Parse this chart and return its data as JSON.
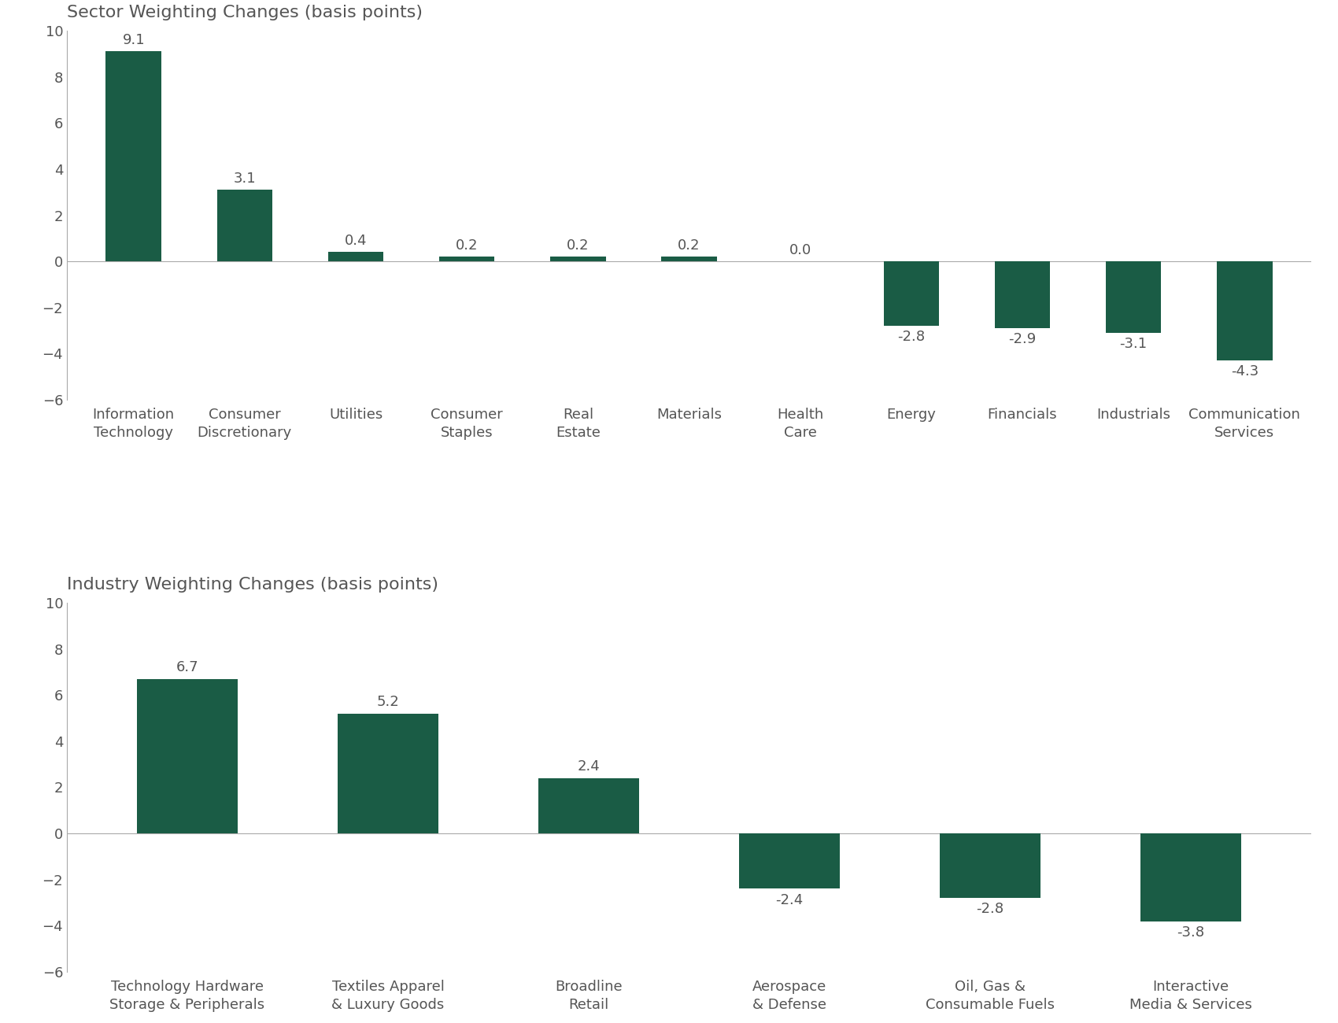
{
  "sector_title": "Sector Weighting Changes (basis points)",
  "sector_categories": [
    "Information\nTechnology",
    "Consumer\nDiscretionary",
    "Utilities",
    "Consumer\nStaples",
    "Real\nEstate",
    "Materials",
    "Health\nCare",
    "Energy",
    "Financials",
    "Industrials",
    "Communication\nServices"
  ],
  "sector_values": [
    9.1,
    3.1,
    0.4,
    0.2,
    0.2,
    0.2,
    0.0,
    -2.8,
    -2.9,
    -3.1,
    -4.3
  ],
  "industry_title": "Industry Weighting Changes (basis points)",
  "industry_categories": [
    "Technology Hardware\nStorage & Peripherals",
    "Textiles Apparel\n& Luxury Goods",
    "Broadline\nRetail",
    "Aerospace\n& Defense",
    "Oil, Gas &\nConsumable Fuels",
    "Interactive\nMedia & Services"
  ],
  "industry_values": [
    6.7,
    5.2,
    2.4,
    -2.4,
    -2.8,
    -3.8
  ],
  "bar_color": "#1a5c45",
  "background_color": "#ffffff",
  "text_color": "#555555",
  "ylim": [
    -6,
    10
  ],
  "yticks": [
    -6,
    -4,
    -2,
    0,
    2,
    4,
    6,
    8,
    10
  ],
  "tick_fontsize": 13,
  "title_fontsize": 16,
  "value_fontsize": 13,
  "spine_color": "#aaaaaa"
}
